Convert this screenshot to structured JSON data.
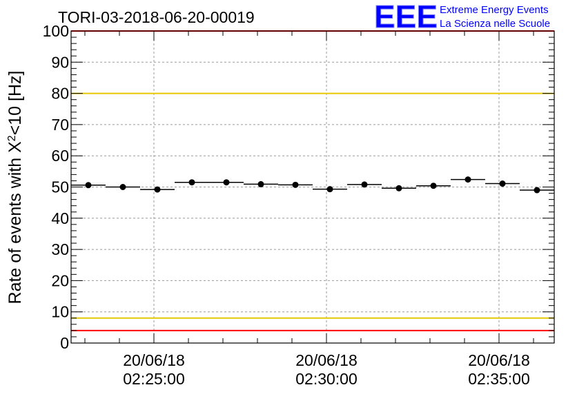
{
  "chart_data": {
    "type": "scatter",
    "title": "TORI-03-2018-06-20-00019",
    "xlabel": "",
    "ylabel": "Rate of events with χ²<10 [Hz]",
    "ylabel_parts": {
      "pre": "Rate of events with X",
      "sup": "2",
      "post": "<10 [Hz]"
    },
    "ylim": [
      0,
      100
    ],
    "yticks": [
      0,
      10,
      20,
      30,
      40,
      50,
      60,
      70,
      80,
      90,
      100
    ],
    "xlim_min": [
      22.6,
      36.6
    ],
    "xticks": [
      {
        "value_min": 25,
        "date": "20/06/18",
        "time": "02:25:00"
      },
      {
        "value_min": 30,
        "date": "20/06/18",
        "time": "02:30:00"
      },
      {
        "value_min": 35,
        "date": "20/06/18",
        "time": "02:35:00"
      }
    ],
    "grid": true,
    "bin_width_min": 1,
    "series": [
      {
        "name": "rate",
        "x_min": [
          23.1,
          24.1,
          25.1,
          26.1,
          27.1,
          28.1,
          29.1,
          30.1,
          31.1,
          32.1,
          33.1,
          34.1,
          35.1,
          36.1
        ],
        "values": [
          50.6,
          50.0,
          49.2,
          51.5,
          51.5,
          50.9,
          50.7,
          49.3,
          50.8,
          49.6,
          50.4,
          52.4,
          51.1,
          49.0
        ]
      }
    ],
    "reference_lines": [
      {
        "name": "upper-red",
        "y": 100,
        "color": "#ff0000"
      },
      {
        "name": "upper-yellow",
        "y": 80,
        "color": "#e6c800"
      },
      {
        "name": "lower-yellow",
        "y": 8,
        "color": "#e6c800"
      },
      {
        "name": "lower-red",
        "y": 4,
        "color": "#ff0000"
      }
    ]
  },
  "logo": {
    "text": "EEE",
    "line1": "Extreme Energy Events",
    "line2": "La Scienza nelle Scuole",
    "color": "#0000ff"
  }
}
